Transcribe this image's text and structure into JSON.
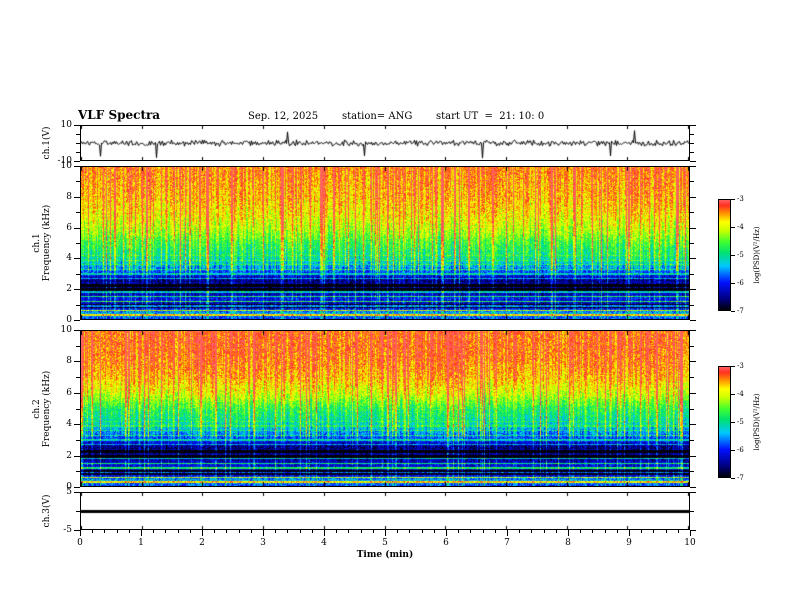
{
  "header": {
    "title": "VLF Spectra",
    "date": "Sep. 12, 2025",
    "station": "station= ANG",
    "start_ut": "start UT  =  21: 10: 0"
  },
  "axes": {
    "x": {
      "label": "Time (min)",
      "range": [
        0,
        10
      ],
      "ticks": [
        0,
        1,
        2,
        3,
        4,
        5,
        6,
        7,
        8,
        9,
        10
      ],
      "minor_step": 0.2
    },
    "ch1_wave": {
      "label": "ch.1(V)",
      "range": [
        -10,
        10
      ],
      "ticks": [
        10,
        -10
      ],
      "minor_ticks": [
        5,
        0,
        -5
      ]
    },
    "ch1_spec": {
      "label": "ch.1\nFrequency (kHz)",
      "range": [
        0,
        10
      ],
      "ticks": [
        10,
        8,
        6,
        4,
        2,
        0
      ],
      "minor_ticks": [
        9,
        7,
        5,
        3,
        1
      ]
    },
    "ch2_spec": {
      "label": "ch.2\nFrequency (kHz)",
      "range": [
        0,
        10
      ],
      "ticks": [
        10,
        8,
        6,
        4,
        2,
        0
      ],
      "minor_ticks": [
        9,
        7,
        5,
        3,
        1
      ]
    },
    "ch3_wave": {
      "label": "ch.3(V)",
      "range": [
        -5,
        5
      ],
      "ticks": [
        5,
        -5
      ],
      "minor_ticks": [
        0
      ]
    }
  },
  "colorbar": {
    "label": "log(PSD)(V²/Hz)",
    "range": [
      -7,
      -3
    ],
    "ticks": [
      -3,
      -4,
      -5,
      -6,
      -7
    ]
  },
  "colormap": [
    [
      0.0,
      "#000008"
    ],
    [
      0.1,
      "#00007f"
    ],
    [
      0.25,
      "#0010ff"
    ],
    [
      0.4,
      "#00c8ff"
    ],
    [
      0.52,
      "#00e070"
    ],
    [
      0.62,
      "#40ff30"
    ],
    [
      0.72,
      "#c8ff00"
    ],
    [
      0.8,
      "#ffff00"
    ],
    [
      0.88,
      "#ff9000"
    ],
    [
      0.95,
      "#ff3020"
    ],
    [
      1.0,
      "#ff6060"
    ]
  ],
  "chart_data": [
    {
      "type": "line",
      "name": "ch1-voltage-waveform",
      "ylabel": "ch.1(V)",
      "xlim": [
        0,
        10
      ],
      "ylim": [
        -10,
        10
      ],
      "baseline": 0,
      "description": "Broadband noise centred on 0 V, roughly ±1.5 V, with intermittent impulsive spikes (mostly negative) reaching about -9 V",
      "noise_amp": 1.3,
      "spike_prob": 0.015,
      "spike_sign_neg_frac": 0.8,
      "spike_min": 4,
      "spike_max": 9
    },
    {
      "type": "heatmap",
      "name": "ch1-spectrogram",
      "xlabel": "Time (min)",
      "ylabel": "ch.1 Frequency (kHz)",
      "xlim": [
        0,
        10
      ],
      "ylim": [
        0,
        10
      ],
      "zlabel": "log(PSD)(V²/Hz)",
      "zlim": [
        -7,
        -3
      ],
      "description": "VLF spectrogram: high PSD (red/yellow, ~-3.5 to -4) above ~6 kHz, green/cyan mid band 3-6 kHz, dark blue below 3 kHz with dark horizontal bands and bright power-line harmonic lines; dense vertical sferic streaks across all frequencies",
      "freq_profile_khz_logpsd": [
        [
          0,
          -6.0
        ],
        [
          0.4,
          -5.5
        ],
        [
          0.9,
          -6.5
        ],
        [
          1.4,
          -6.1
        ],
        [
          2.1,
          -6.9
        ],
        [
          2.6,
          -6.6
        ],
        [
          3,
          -6.0
        ],
        [
          3.5,
          -5.5
        ],
        [
          4,
          -5.1
        ],
        [
          5,
          -4.7
        ],
        [
          6,
          -4.2
        ],
        [
          7,
          -3.9
        ],
        [
          8,
          -3.7
        ],
        [
          9,
          -3.6
        ],
        [
          10,
          -3.5
        ]
      ],
      "dark_bands_khz": [
        [
          0.75,
          1.05
        ],
        [
          1.85,
          2.45
        ]
      ],
      "harmonic_line_spacing_khz": 0.3,
      "harmonic_lines_below_khz": 4.4,
      "streaks": {
        "density": 0.18,
        "strength": 1.5
      },
      "seed": 11
    },
    {
      "type": "heatmap",
      "name": "ch2-spectrogram",
      "xlabel": "Time (min)",
      "ylabel": "ch.2 Frequency (kHz)",
      "xlim": [
        0,
        10
      ],
      "ylim": [
        0,
        10
      ],
      "zlabel": "log(PSD)(V²/Hz)",
      "zlim": [
        -7,
        -3
      ],
      "description": "Same structure as ch.1 but slightly hotter (more red, ~-3.4) above 7 kHz",
      "freq_profile_khz_logpsd": [
        [
          0,
          -6.0
        ],
        [
          0.4,
          -5.5
        ],
        [
          0.9,
          -6.6
        ],
        [
          1.4,
          -6.2
        ],
        [
          2.1,
          -6.9
        ],
        [
          2.6,
          -6.6
        ],
        [
          3,
          -6.0
        ],
        [
          3.5,
          -5.6
        ],
        [
          4,
          -5.2
        ],
        [
          5,
          -4.8
        ],
        [
          6,
          -4.1
        ],
        [
          7,
          -3.7
        ],
        [
          8,
          -3.5
        ],
        [
          9,
          -3.4
        ],
        [
          10,
          -3.4
        ]
      ],
      "dark_bands_khz": [
        [
          0.75,
          1.05
        ],
        [
          1.85,
          2.45
        ]
      ],
      "harmonic_line_spacing_khz": 0.3,
      "harmonic_lines_below_khz": 4.4,
      "streaks": {
        "density": 0.16,
        "strength": 1.5
      },
      "seed": 77
    },
    {
      "type": "line",
      "name": "ch3-voltage-waveform",
      "ylabel": "ch.3(V)",
      "xlim": [
        0,
        10
      ],
      "ylim": [
        -5,
        5
      ],
      "baseline": 0,
      "flat": true,
      "description": "Constant 0 V flat thick line across the full time range"
    }
  ]
}
